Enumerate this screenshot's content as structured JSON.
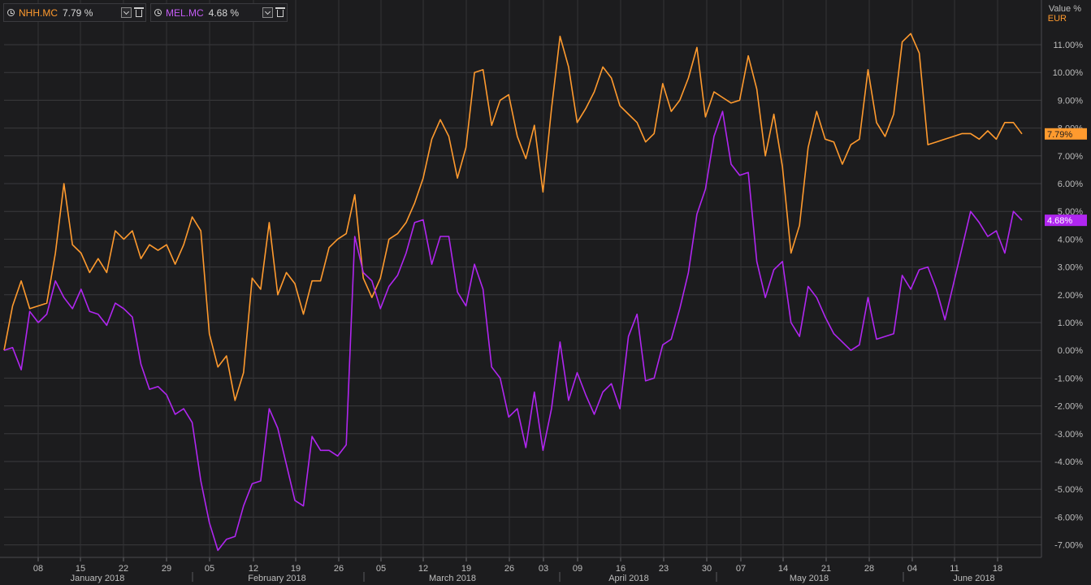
{
  "legend": [
    {
      "symbol": "NHH.MC",
      "value": "7.79 %",
      "color": "#ff9a2e",
      "icon": "clock-icon"
    },
    {
      "symbol": "MEL.MC",
      "value": "4.68 %",
      "color": "#b026f0",
      "icon": "clock-icon"
    }
  ],
  "axis": {
    "unit_top": "Value %",
    "currency": "EUR"
  },
  "colors": {
    "nhh": "#ff9a2e",
    "mel": "#b026f0",
    "grid": "#3a3a3d",
    "bg": "#1c1c1e"
  },
  "chart_data": {
    "type": "line",
    "ylim": [
      -7.2,
      11.8
    ],
    "yticks": [
      "11.00%",
      "10.00%",
      "9.00%",
      "8.00%",
      "7.00%",
      "6.00%",
      "5.00%",
      "4.00%",
      "3.00%",
      "2.00%",
      "1.00%",
      "0.00%",
      "-1.00%",
      "-2.00%",
      "-3.00%",
      "-4.00%",
      "-5.00%",
      "-6.00%",
      "-7.00%"
    ],
    "xticks": [
      "08",
      "15",
      "22",
      "29",
      "05",
      "12",
      "19",
      "26",
      "05",
      "12",
      "19",
      "26",
      "03",
      "09",
      "16",
      "23",
      "30",
      "07",
      "14",
      "21",
      "28",
      "04",
      "11",
      "18"
    ],
    "months": [
      "January 2018",
      "February 2018",
      "March 2018",
      "April 2018",
      "May 2018",
      "June 2018"
    ],
    "series": [
      {
        "name": "NHH.MC",
        "last_label": "7.79%",
        "values": [
          0.0,
          1.6,
          2.5,
          1.5,
          1.6,
          1.7,
          3.5,
          6.0,
          3.8,
          3.5,
          2.8,
          3.3,
          2.8,
          4.3,
          4.0,
          4.3,
          3.3,
          3.8,
          3.6,
          3.8,
          3.1,
          3.8,
          4.8,
          4.3,
          0.6,
          -0.6,
          -0.2,
          -1.8,
          -0.8,
          2.6,
          2.2,
          4.6,
          2.0,
          2.8,
          2.4,
          1.3,
          2.5,
          2.5,
          3.7,
          4.0,
          4.2,
          5.6,
          2.6,
          1.9,
          2.6,
          4.0,
          4.2,
          4.6,
          5.3,
          6.2,
          7.6,
          8.3,
          7.7,
          6.2,
          7.3,
          10.0,
          10.1,
          8.1,
          9.0,
          9.2,
          7.7,
          6.9,
          8.1,
          5.7,
          8.7,
          11.3,
          10.2,
          8.2,
          8.7,
          9.3,
          10.2,
          9.8,
          8.8,
          8.5,
          8.2,
          7.5,
          7.8,
          9.6,
          8.6,
          9.0,
          9.8,
          10.9,
          8.4,
          9.3,
          9.1,
          8.9,
          9.0,
          10.6,
          9.4,
          7.0,
          8.5,
          6.6,
          3.5,
          4.5,
          7.3,
          8.6,
          7.6,
          7.5,
          6.7,
          7.4,
          7.6,
          10.1,
          8.2,
          7.7,
          8.5,
          11.1,
          11.4,
          10.7,
          7.4,
          7.5,
          7.6,
          7.7,
          7.8,
          7.8,
          7.6,
          7.9,
          7.6,
          8.2,
          8.2,
          7.79
        ]
      },
      {
        "name": "MEL.MC",
        "last_label": "4.68%",
        "values": [
          0.0,
          0.1,
          -0.7,
          1.4,
          1.0,
          1.3,
          2.5,
          1.9,
          1.5,
          2.2,
          1.4,
          1.3,
          0.9,
          1.7,
          1.5,
          1.2,
          -0.5,
          -1.4,
          -1.3,
          -1.6,
          -2.3,
          -2.1,
          -2.6,
          -4.7,
          -6.2,
          -7.2,
          -6.8,
          -6.7,
          -5.6,
          -4.8,
          -4.7,
          -2.1,
          -2.8,
          -4.1,
          -5.4,
          -5.6,
          -3.1,
          -3.6,
          -3.6,
          -3.8,
          -3.4,
          4.1,
          2.8,
          2.5,
          1.5,
          2.3,
          2.7,
          3.5,
          4.6,
          4.7,
          3.1,
          4.1,
          4.1,
          2.1,
          1.6,
          3.1,
          2.2,
          -0.6,
          -1.0,
          -2.4,
          -2.1,
          -3.5,
          -1.5,
          -3.6,
          -2.1,
          0.3,
          -1.8,
          -0.8,
          -1.6,
          -2.3,
          -1.5,
          -1.2,
          -2.1,
          0.5,
          1.3,
          -1.1,
          -1.0,
          0.2,
          0.4,
          1.5,
          2.8,
          4.9,
          5.8,
          7.7,
          8.6,
          6.7,
          6.3,
          6.4,
          3.2,
          1.9,
          2.9,
          3.2,
          1.0,
          0.5,
          2.3,
          1.9,
          1.2,
          0.6,
          0.3,
          0.0,
          0.2,
          1.9,
          0.4,
          0.5,
          0.6,
          2.7,
          2.2,
          2.9,
          3.0,
          2.2,
          1.1,
          2.4,
          3.7,
          5.0,
          4.6,
          4.1,
          4.3,
          3.5,
          5.0,
          4.68
        ]
      }
    ]
  }
}
